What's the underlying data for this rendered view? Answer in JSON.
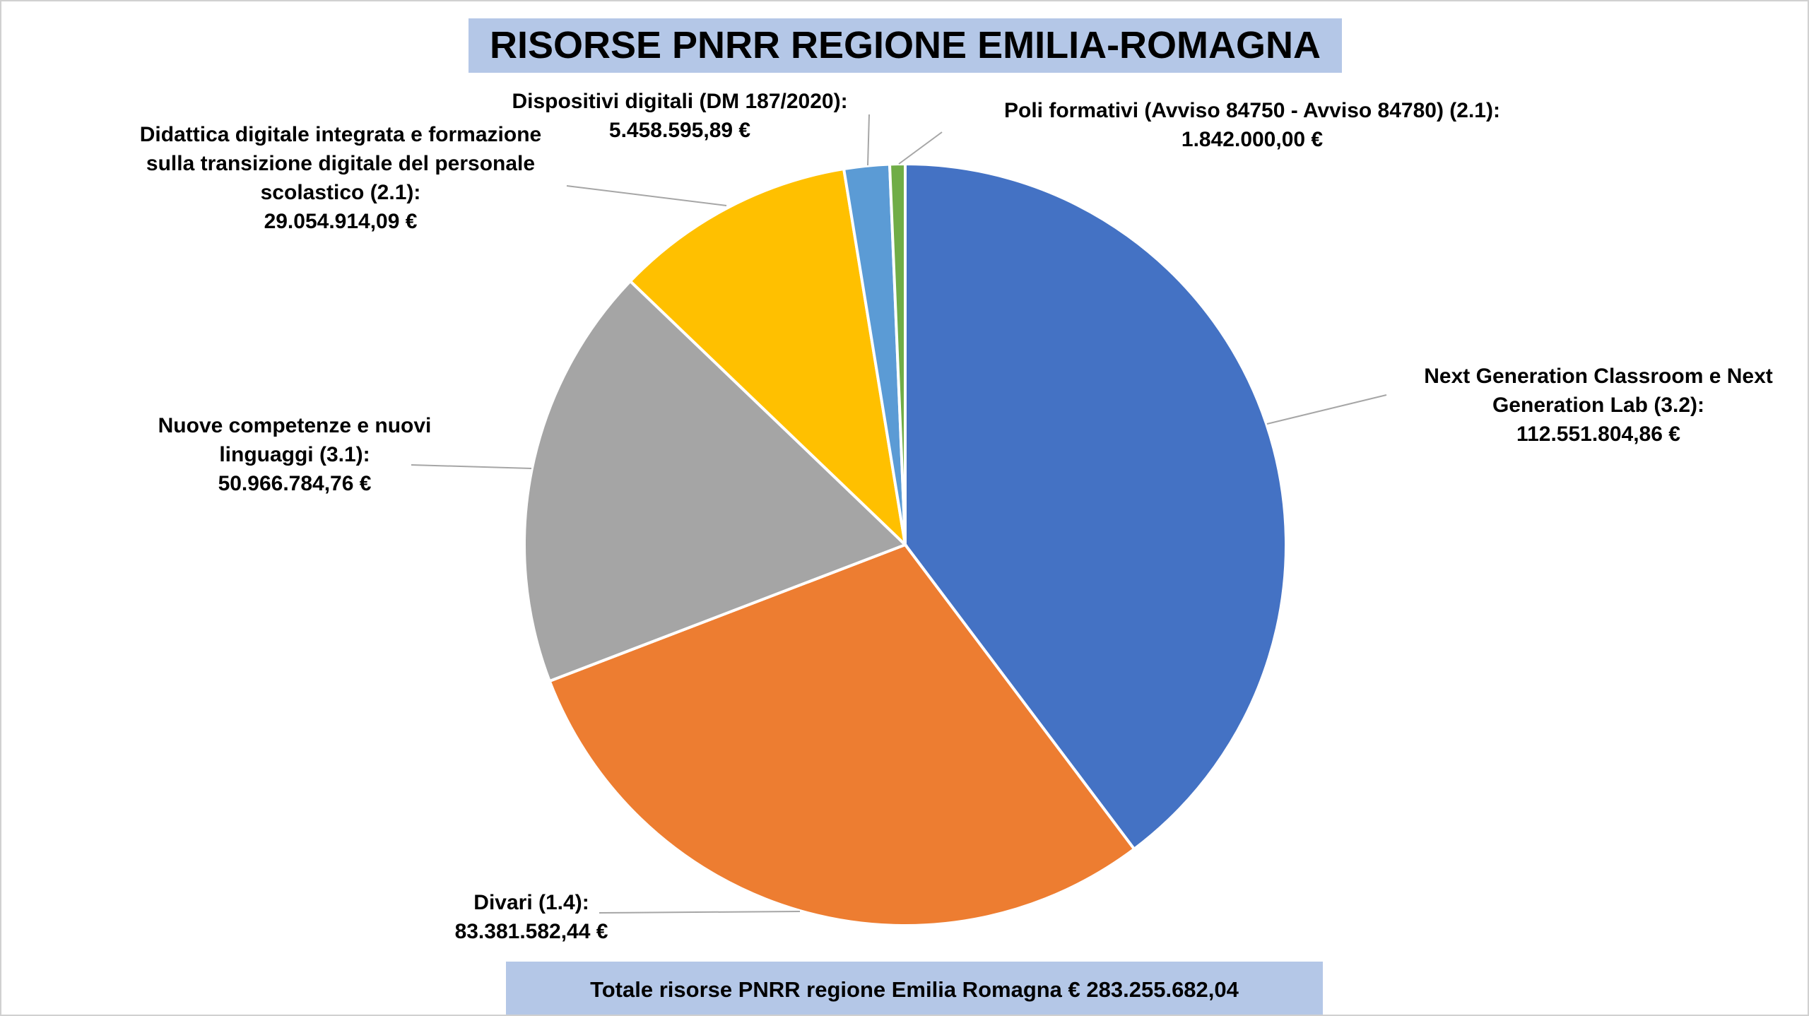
{
  "chart_data": {
    "type": "pie",
    "title": "RISORSE PNRR REGIONE EMILIA-ROMAGNA",
    "categories": [
      "Next Generation Classroom e Next Generation Lab (3.2):",
      "Divari (1.4):",
      "Nuove competenze e nuovi linguaggi (3.1):",
      "Didattica digitale integrata e formazione sulla transizione digitale del personale scolastico (2.1):",
      "Dispositivi digitali (DM 187/2020):",
      "Poli formativi (Avviso 84750 - Avviso 84780) (2.1):"
    ],
    "values": [
      112551804.86,
      83381582.44,
      50966784.76,
      29054914.09,
      5458595.89,
      1842000.0
    ],
    "value_labels": [
      "112.551.804,86 €",
      "83.381.582,44 €",
      "50.966.784,76 €",
      "29.054.914,09 €",
      "5.458.595,89 €",
      "1.842.000,00 €"
    ],
    "colors": [
      "#4472c4",
      "#ed7d31",
      "#a5a5a5",
      "#ffc000",
      "#5b9bd5",
      "#70ad47"
    ],
    "annotation": "Totale risorse PNRR regione Emilia Romagna € 283.255.682,04"
  }
}
